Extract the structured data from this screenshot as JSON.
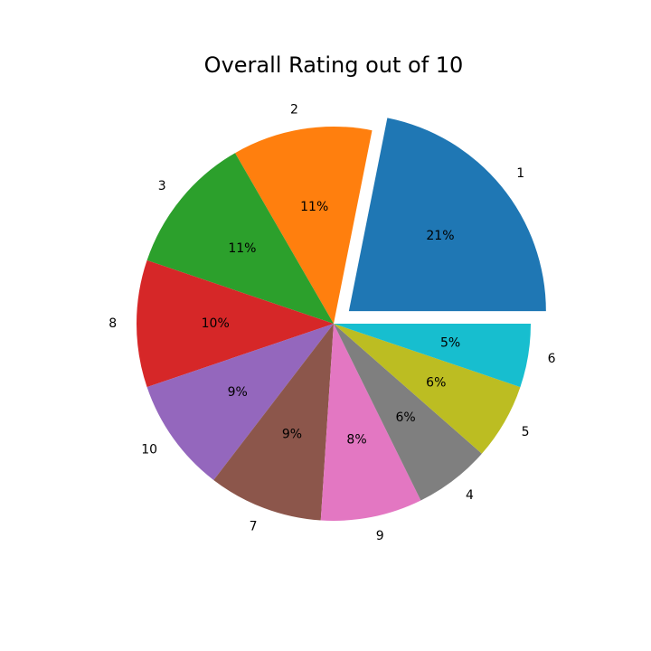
{
  "chart_data": {
    "type": "pie",
    "title": "Overall Rating out of 10",
    "start_angle_deg": 0,
    "direction": "counterclockwise",
    "exploded": [
      "1"
    ],
    "slices": [
      {
        "label": "1",
        "value": 21,
        "pct_label": "21%",
        "color": "#1f77b4"
      },
      {
        "label": "2",
        "value": 11,
        "pct_label": "11%",
        "color": "#ff7f0e"
      },
      {
        "label": "3",
        "value": 11,
        "pct_label": "11%",
        "color": "#2ca02c"
      },
      {
        "label": "8",
        "value": 10,
        "pct_label": "10%",
        "color": "#d62728"
      },
      {
        "label": "10",
        "value": 9,
        "pct_label": "9%",
        "color": "#9467bd"
      },
      {
        "label": "7",
        "value": 9,
        "pct_label": "9%",
        "color": "#8c564b"
      },
      {
        "label": "9",
        "value": 8,
        "pct_label": "8%",
        "color": "#e377c2"
      },
      {
        "label": "4",
        "value": 6,
        "pct_label": "6%",
        "color": "#7f7f7f"
      },
      {
        "label": "5",
        "value": 6,
        "pct_label": "6%",
        "color": "#bcbd22"
      },
      {
        "label": "6",
        "value": 5,
        "pct_label": "5%",
        "color": "#17becf"
      }
    ]
  }
}
